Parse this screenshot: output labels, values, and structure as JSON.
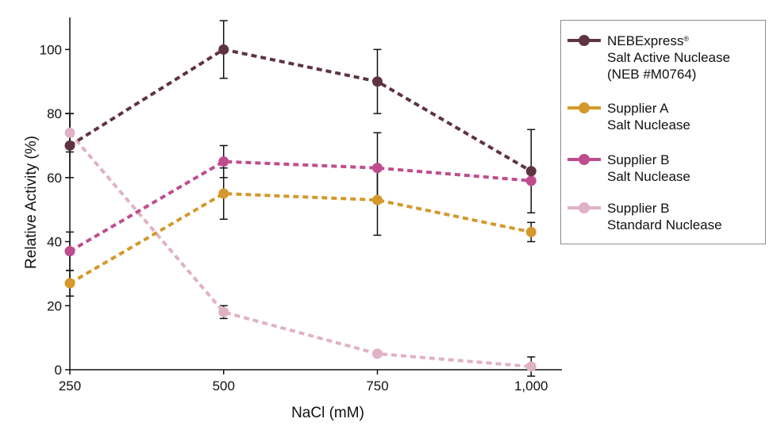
{
  "chart_data": {
    "type": "line",
    "x": [
      250,
      500,
      750,
      1000
    ],
    "x_tick_labels": [
      "250",
      "500",
      "750",
      "1,000"
    ],
    "xlabel": "NaCl (mM)",
    "ylabel": "Relative Activity (%)",
    "ylim": [
      0,
      110
    ],
    "xlim": [
      250,
      1050
    ],
    "y_ticks": [
      0,
      20,
      40,
      60,
      80,
      100
    ],
    "grid": false,
    "legend_position": "right",
    "line_style": "dashed",
    "series": [
      {
        "name_lines": [
          "NEBExpress",
          "Salt Active Nuclease",
          "(NEB #M0764)"
        ],
        "superscript": "®",
        "color": "#5e3441",
        "values": [
          70,
          100,
          90,
          62
        ],
        "error": [
          10,
          9,
          10,
          13
        ]
      },
      {
        "name_lines": [
          "Supplier A",
          "Salt Nuclease"
        ],
        "color": "#d4982c",
        "values": [
          27,
          55,
          53,
          43
        ],
        "error": [
          4,
          8,
          11,
          3
        ]
      },
      {
        "name_lines": [
          "Supplier B",
          "Salt Nuclease"
        ],
        "color": "#bf4d8e",
        "values": [
          37,
          65,
          63,
          59
        ],
        "error": [
          6,
          5,
          11,
          0
        ]
      },
      {
        "name_lines": [
          "Supplier B",
          "Standard Nuclease"
        ],
        "color": "#e0b2c6",
        "values": [
          74,
          18,
          5,
          1
        ],
        "error": [
          6,
          2,
          0,
          3
        ]
      }
    ]
  }
}
